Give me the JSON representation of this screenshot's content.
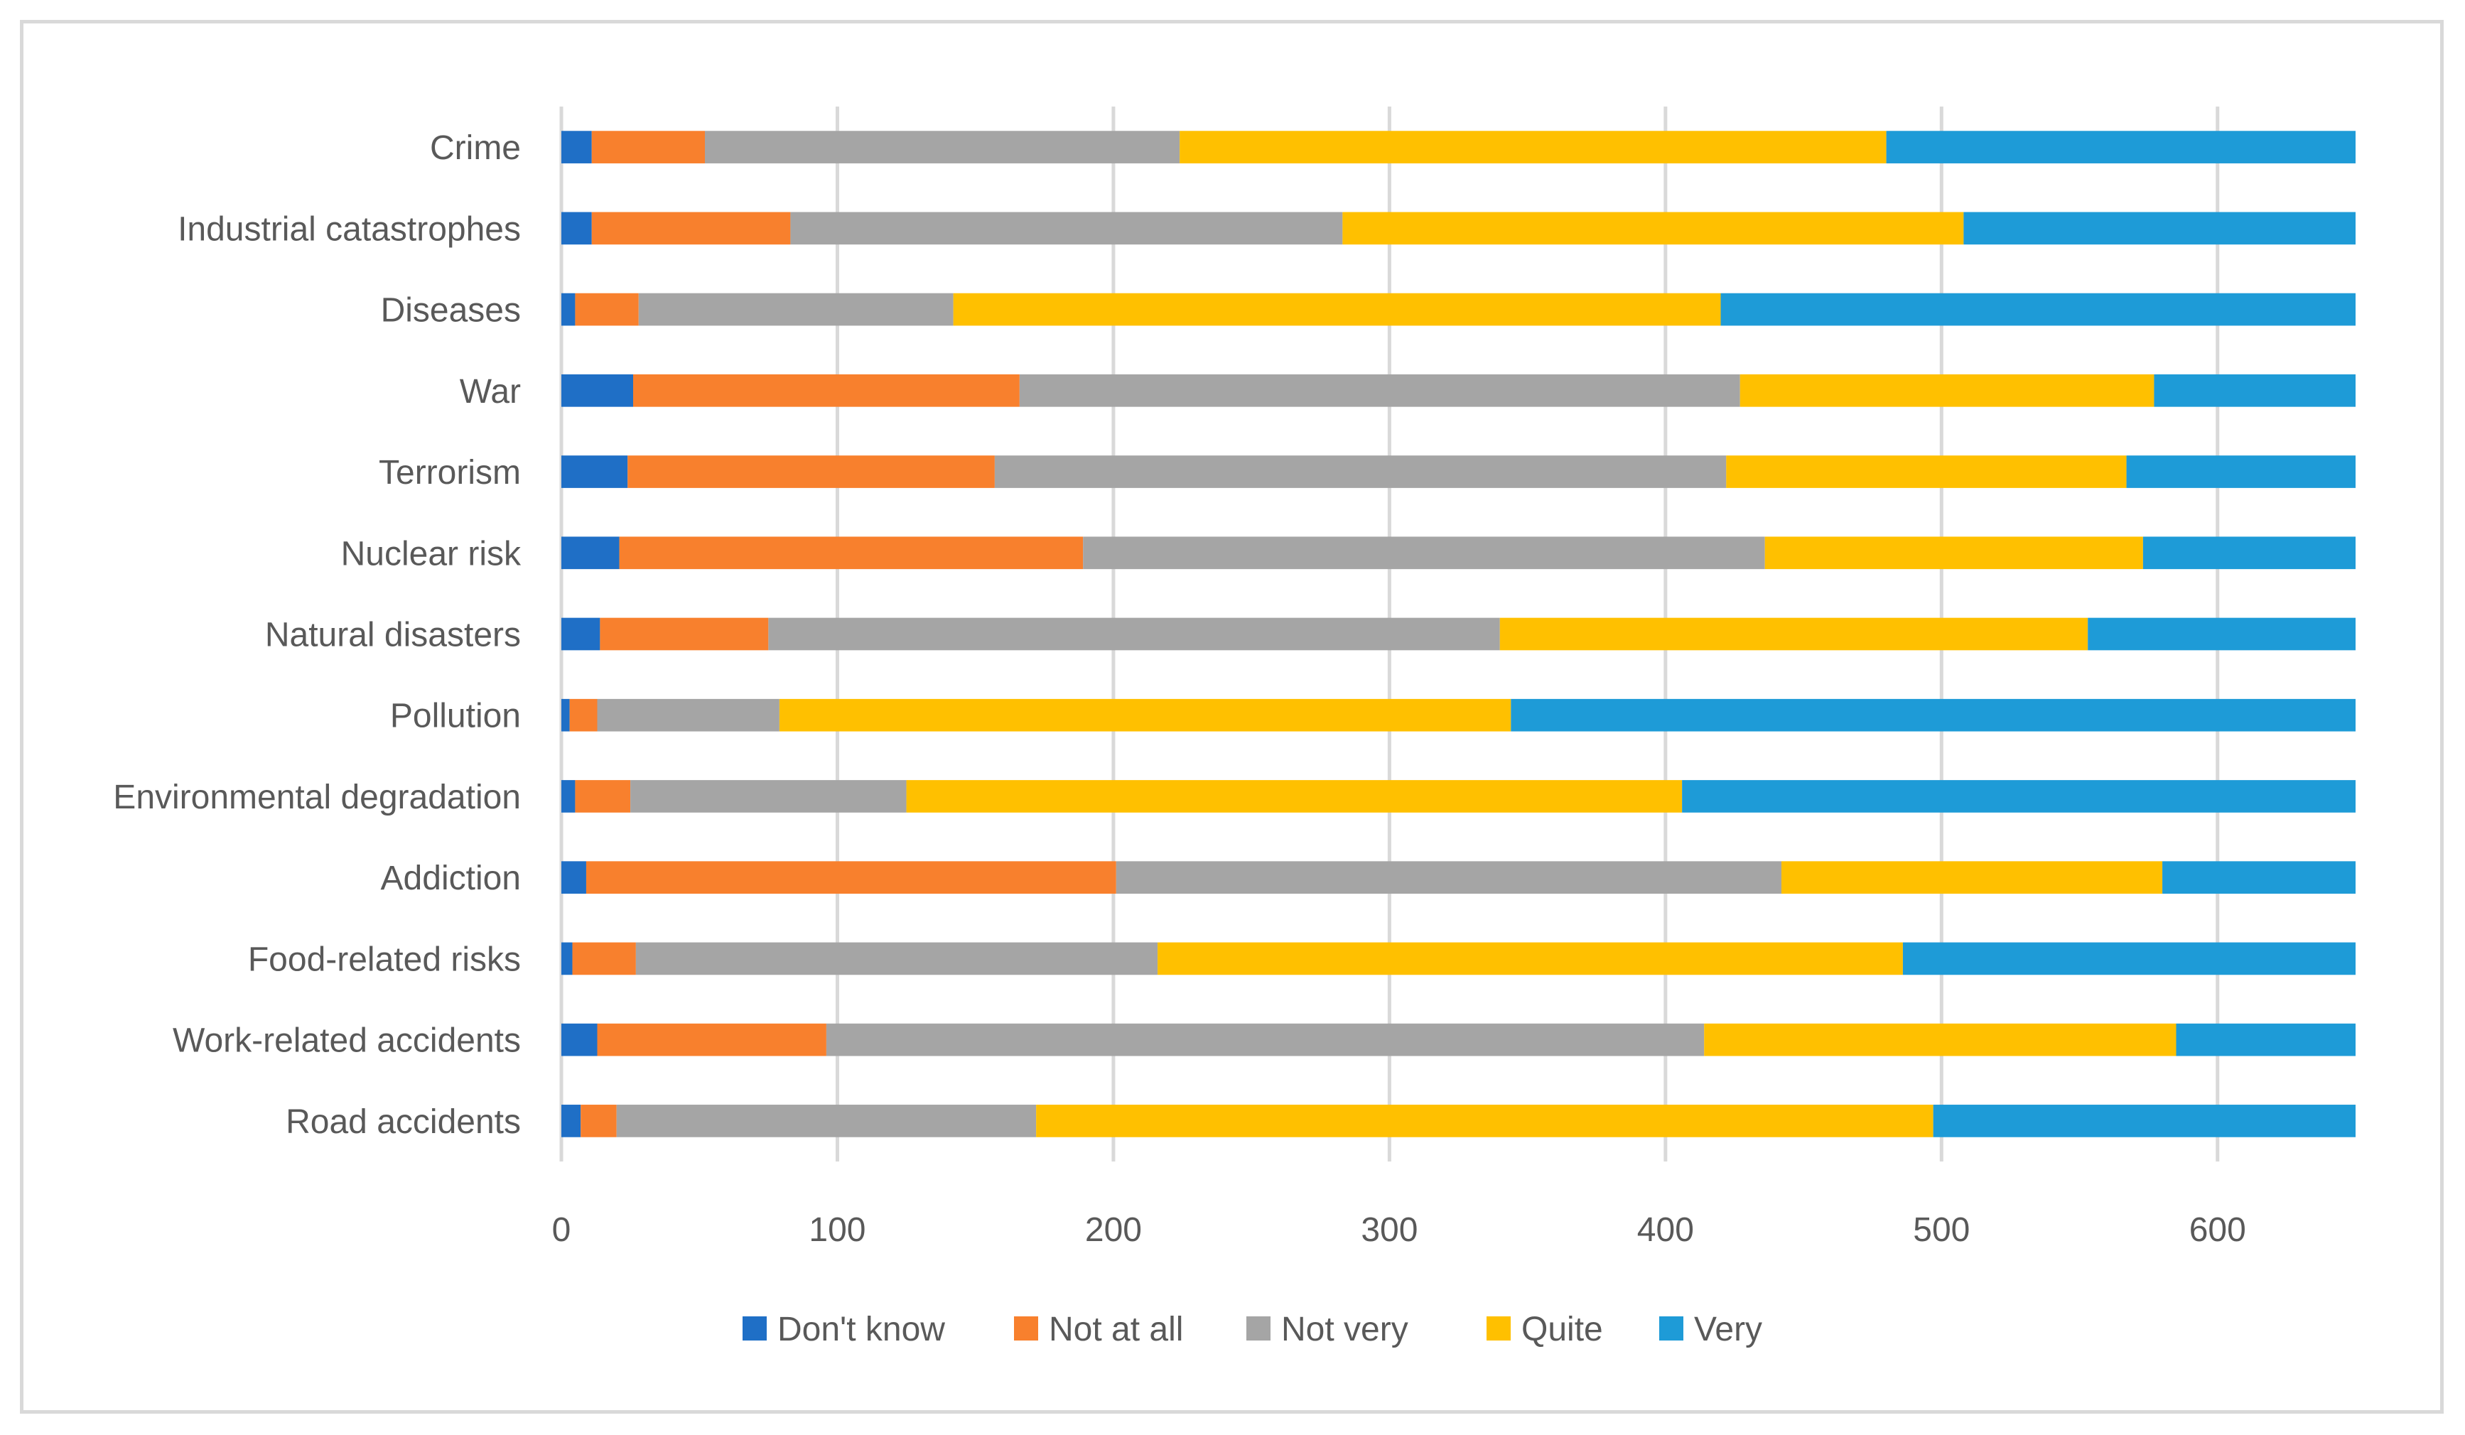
{
  "chart_data": {
    "type": "bar",
    "orientation": "horizontal",
    "stacked": true,
    "title": "",
    "xlabel": "",
    "ylabel": "",
    "xlim": [
      0,
      650
    ],
    "xticks": [
      0,
      100,
      200,
      300,
      400,
      500,
      600
    ],
    "grid": "vertical",
    "legend_position": "bottom",
    "categories": [
      "Crime",
      "Industrial catastrophes",
      "Diseases",
      "War",
      "Terrorism",
      "Nuclear risk",
      "Natural disasters",
      "Pollution",
      "Environmental degradation",
      "Addiction",
      "Food-related risks",
      "Work-related accidents",
      "Road accidents"
    ],
    "series": [
      {
        "name": "Don't know",
        "color": "#1f6fc6",
        "values": [
          11,
          11,
          5,
          26,
          24,
          21,
          14,
          3,
          5,
          9,
          4,
          13,
          7
        ]
      },
      {
        "name": "Not at all",
        "color": "#f8802d",
        "values": [
          41,
          72,
          23,
          140,
          133,
          168,
          61,
          10,
          20,
          192,
          23,
          83,
          13
        ]
      },
      {
        "name": "Not very",
        "color": "#a5a5a5",
        "values": [
          172,
          200,
          114,
          261,
          265,
          247,
          265,
          66,
          100,
          241,
          189,
          318,
          152
        ]
      },
      {
        "name": "Quite",
        "color": "#ffc000",
        "values": [
          256,
          225,
          278,
          150,
          145,
          137,
          213,
          265,
          281,
          138,
          270,
          171,
          325
        ]
      },
      {
        "name": "Very",
        "color": "#1e9bd7",
        "values": [
          170,
          142,
          230,
          73,
          83,
          77,
          97,
          306,
          244,
          70,
          164,
          65,
          153
        ]
      }
    ]
  }
}
